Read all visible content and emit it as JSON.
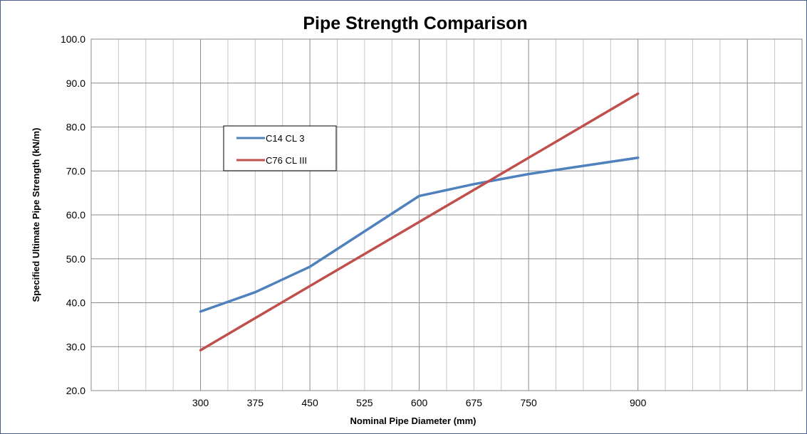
{
  "chart_data": {
    "type": "line",
    "title": "Pipe Strength Comparison",
    "xlabel": "Nominal Pipe Diameter (mm)",
    "ylabel": "Specified Ultimate Pipe Strength (kN/m)",
    "x_ticks": [
      "300",
      "375",
      "450",
      "525",
      "600",
      "675",
      "750",
      "900"
    ],
    "y_ticks": [
      "20.0",
      "30.0",
      "40.0",
      "50.0",
      "60.0",
      "70.0",
      "80.0",
      "90.0",
      "100.0"
    ],
    "xlim": [
      150,
      1125
    ],
    "ylim": [
      20,
      100
    ],
    "grid": true,
    "legend_position": "upper-left inside plot",
    "series": [
      {
        "name": "C14 CL 3",
        "color": "#4f81bd",
        "x": [
          300,
          375,
          450,
          600,
          675,
          750,
          900
        ],
        "y": [
          38.0,
          42.4,
          48.2,
          64.3,
          67.0,
          69.3,
          73.0
        ]
      },
      {
        "name": "C76 CL III",
        "color": "#c0504d",
        "x": [
          300,
          900
        ],
        "y": [
          29.2,
          87.6
        ]
      }
    ]
  }
}
